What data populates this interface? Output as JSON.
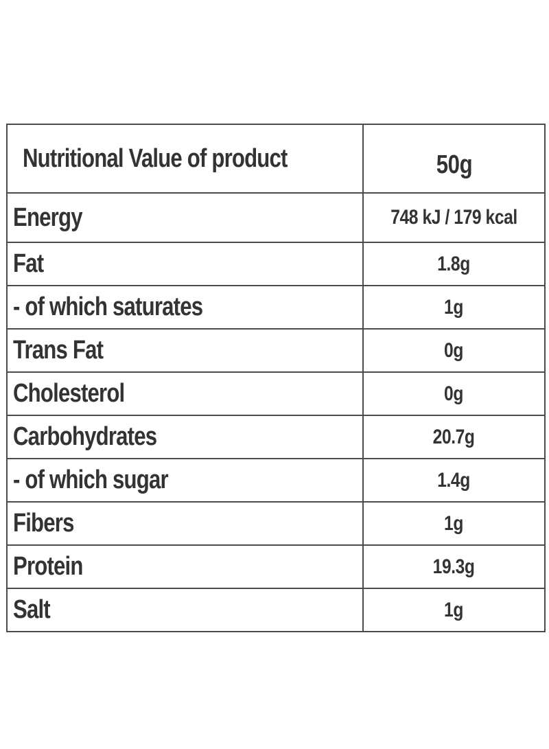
{
  "table": {
    "header": {
      "label": "Nutritional Value of product",
      "value": "50g"
    },
    "rows": [
      {
        "label": "Energy",
        "value": "748 kJ / 179 kcal"
      },
      {
        "label": "Fat",
        "value": "1.8g"
      },
      {
        "label": "- of which saturates",
        "value": "1g"
      },
      {
        "label": "Trans Fat",
        "value": "0g"
      },
      {
        "label": "Cholesterol",
        "value": "0g"
      },
      {
        "label": "Carbohydrates",
        "value": "20.7g"
      },
      {
        "label": "- of which sugar",
        "value": "1.4g"
      },
      {
        "label": "Fibers",
        "value": "1g"
      },
      {
        "label": "Protein",
        "value": "19.3g"
      },
      {
        "label": "Salt",
        "value": "1g"
      }
    ]
  },
  "colors": {
    "text": "#333333",
    "border": "#4a4a4a",
    "background": "#ffffff"
  }
}
